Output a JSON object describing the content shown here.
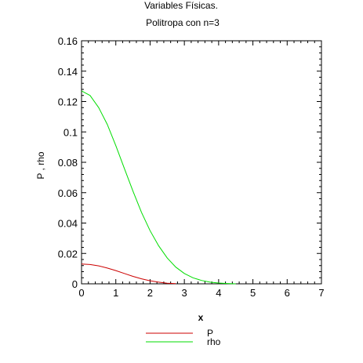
{
  "chart_data": {
    "type": "line",
    "title": "Variables Físicas.",
    "subtitle": "Politropa con n=3",
    "xlabel": "x",
    "ylabel": "P , rho",
    "xlim": [
      0,
      7
    ],
    "ylim": [
      0,
      0.16
    ],
    "xticks": [
      "0",
      "1",
      "2",
      "3",
      "4",
      "5",
      "6",
      "7"
    ],
    "yticks": [
      "0",
      "0.02",
      "0.04",
      "0.06",
      "0.08",
      "0.1",
      "0.12",
      "0.14",
      "0.16"
    ],
    "grid": false,
    "legend_position": "bottom-center",
    "series": [
      {
        "name": "P",
        "color": "#cc0000",
        "x": [
          0,
          0.25,
          0.5,
          0.75,
          1.0,
          1.25,
          1.5,
          1.75,
          2.0,
          2.25,
          2.5,
          2.75
        ],
        "y": [
          0.013,
          0.0127,
          0.0118,
          0.0104,
          0.0087,
          0.0068,
          0.0049,
          0.0033,
          0.002,
          0.0011,
          0.0004,
          0.0001
        ]
      },
      {
        "name": "rho",
        "color": "#00dd00",
        "x": [
          0,
          0.25,
          0.5,
          0.75,
          1.0,
          1.25,
          1.5,
          1.75,
          2.0,
          2.25,
          2.5,
          2.75,
          3.0,
          3.25,
          3.5,
          3.75,
          4.0,
          4.25,
          4.5
        ],
        "y": [
          0.127,
          0.124,
          0.116,
          0.105,
          0.091,
          0.076,
          0.061,
          0.047,
          0.035,
          0.025,
          0.017,
          0.011,
          0.0068,
          0.004,
          0.0022,
          0.0011,
          0.0005,
          0.0002,
          0.0
        ]
      }
    ]
  }
}
